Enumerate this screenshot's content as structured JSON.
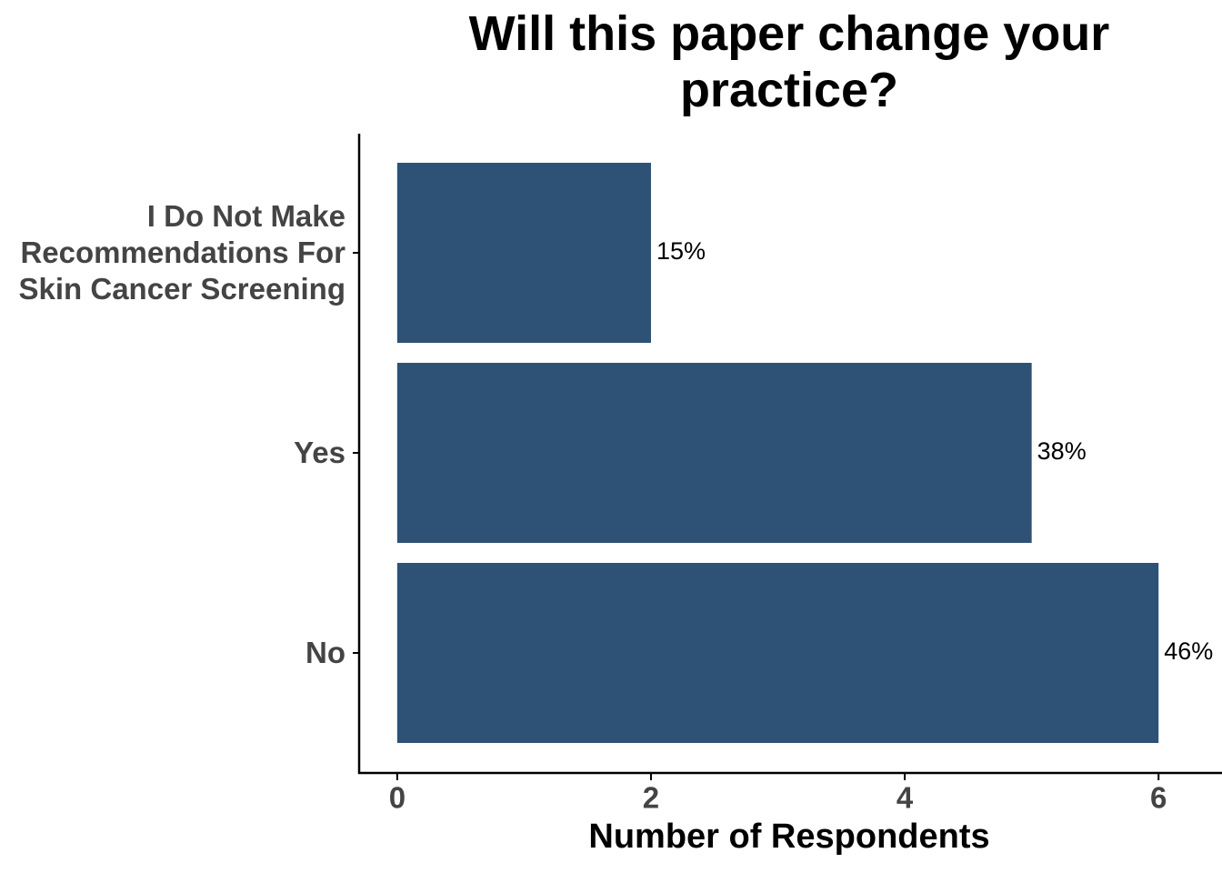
{
  "chart_data": {
    "type": "bar",
    "orientation": "horizontal",
    "title": "Will this paper change your practice?",
    "x_label": "Number of Respondents",
    "categories": [
      "I Do Not Make Recommendations For Skin Cancer Screening",
      "Yes",
      "No"
    ],
    "values": [
      2,
      5,
      6
    ],
    "value_labels": [
      "15%",
      "38%",
      "46%"
    ],
    "color": "#2d5276",
    "xlim": [
      -0.3,
      6.5
    ],
    "xticks": [
      0,
      2,
      4,
      6
    ],
    "grid": false
  }
}
